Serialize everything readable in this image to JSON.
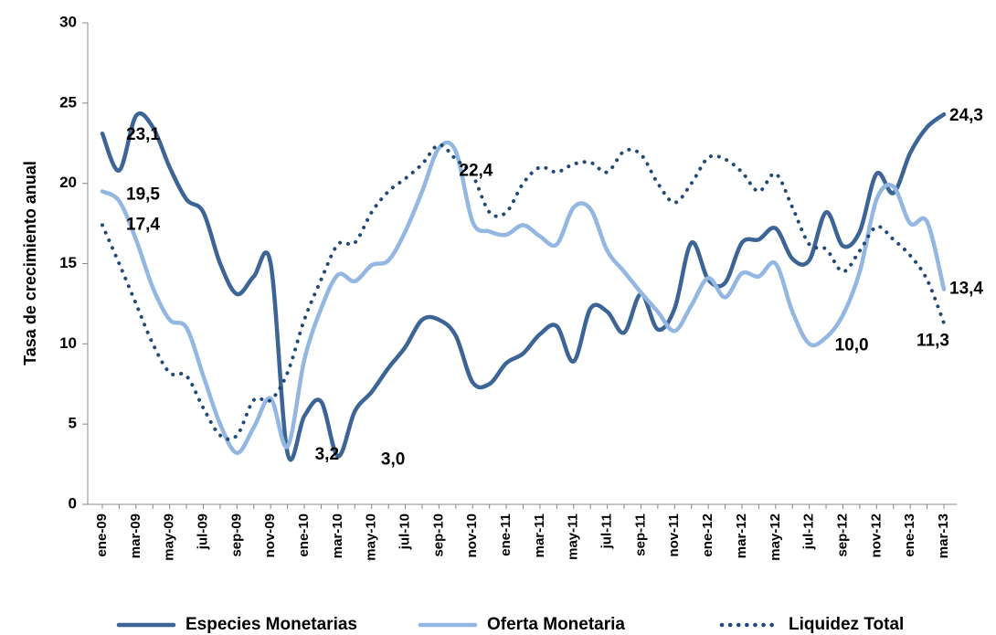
{
  "chart_data": {
    "type": "line",
    "y_label": "Tasa de crecimiento anual",
    "categories": [
      "ene-09",
      null,
      "mar-09",
      null,
      "may-09",
      null,
      "jul-09",
      null,
      "sep-09",
      null,
      "nov-09",
      null,
      "ene-10",
      null,
      "mar-10",
      null,
      "may-10",
      null,
      "jul-10",
      null,
      "sep-10",
      null,
      "nov-10",
      null,
      "ene-11",
      null,
      "mar-11",
      null,
      "may-11",
      null,
      "jul-11",
      null,
      "sep-11",
      null,
      "nov-11",
      null,
      "ene-12",
      null,
      "mar-12",
      null,
      "may-12",
      null,
      "jul-12",
      null,
      "sep-12",
      null,
      "nov-12",
      null,
      "ene-13",
      null,
      "mar-13"
    ],
    "series": [
      {
        "name": "Especies Monetarias",
        "color": "#3c6596",
        "style": "solid",
        "values": [
          23.1,
          20.8,
          24.2,
          23.5,
          21.0,
          19.0,
          18.2,
          15.0,
          13.1,
          14.2,
          15.0,
          3.2,
          5.5,
          6.4,
          3.0,
          5.8,
          7.0,
          8.5,
          9.8,
          11.5,
          11.5,
          10.5,
          7.6,
          7.5,
          8.8,
          9.4,
          10.6,
          11.1,
          8.9,
          12.2,
          12.0,
          10.7,
          13.1,
          10.9,
          12.2,
          16.3,
          14.0,
          13.8,
          16.3,
          16.5,
          17.2,
          15.3,
          15.2,
          18.2,
          16.1,
          17.0,
          20.6,
          19.4,
          21.9,
          23.5,
          24.3
        ],
        "value_labels": [
          "23,1",
          null,
          null,
          null,
          null,
          null,
          null,
          null,
          null,
          null,
          null,
          "3,2",
          null,
          null,
          "3,0",
          null,
          null,
          null,
          null,
          null,
          null,
          null,
          null,
          null,
          null,
          null,
          null,
          null,
          null,
          null,
          null,
          null,
          null,
          null,
          null,
          null,
          null,
          null,
          null,
          null,
          null,
          null,
          null,
          null,
          null,
          null,
          null,
          null,
          null,
          null,
          "24,3"
        ]
      },
      {
        "name": "Oferta Monetaria",
        "color": "#93b7e1",
        "style": "solid",
        "values": [
          19.5,
          18.9,
          16.5,
          13.5,
          11.5,
          11.0,
          8.0,
          5.0,
          3.2,
          4.8,
          6.6,
          3.6,
          9.0,
          12.2,
          14.3,
          13.9,
          14.9,
          15.2,
          17.0,
          19.5,
          22.2,
          22.0,
          17.6,
          17.0,
          16.8,
          17.4,
          16.7,
          16.2,
          18.5,
          18.4,
          15.8,
          14.5,
          13.2,
          12.0,
          10.8,
          12.4,
          14.1,
          12.9,
          14.4,
          14.2,
          15.0,
          12.0,
          10.0,
          10.4,
          11.8,
          14.5,
          19.0,
          19.8,
          17.5,
          17.6,
          13.4
        ],
        "value_labels": [
          "19,5",
          null,
          null,
          null,
          null,
          null,
          null,
          null,
          null,
          null,
          null,
          null,
          null,
          null,
          null,
          null,
          null,
          null,
          null,
          null,
          null,
          null,
          null,
          null,
          null,
          null,
          null,
          null,
          null,
          null,
          null,
          null,
          null,
          null,
          null,
          null,
          null,
          null,
          null,
          null,
          null,
          null,
          "10,0",
          null,
          null,
          null,
          null,
          null,
          null,
          null,
          "13,4"
        ]
      },
      {
        "name": "Liquidez Total",
        "color": "#1f4a78",
        "style": "dotted",
        "values": [
          17.4,
          15.0,
          12.5,
          10.0,
          8.2,
          8.0,
          6.0,
          4.3,
          4.3,
          6.5,
          6.5,
          8.2,
          11.5,
          14.0,
          16.2,
          16.3,
          18.2,
          19.5,
          20.3,
          21.2,
          22.4,
          21.5,
          20.5,
          18.2,
          18.2,
          20.0,
          21.0,
          20.7,
          21.2,
          21.3,
          20.7,
          22.0,
          21.8,
          20.0,
          18.8,
          20.0,
          21.6,
          21.5,
          20.7,
          19.5,
          20.6,
          18.5,
          16.2,
          15.9,
          14.5,
          15.8,
          17.3,
          16.5,
          15.5,
          14.0,
          11.3
        ],
        "value_labels": [
          "17,4",
          null,
          null,
          null,
          null,
          null,
          null,
          null,
          null,
          null,
          null,
          null,
          null,
          null,
          null,
          null,
          null,
          null,
          null,
          null,
          "22,4",
          null,
          null,
          null,
          null,
          null,
          null,
          null,
          null,
          null,
          null,
          null,
          null,
          null,
          null,
          null,
          null,
          null,
          null,
          null,
          null,
          null,
          null,
          null,
          null,
          null,
          null,
          null,
          null,
          null,
          "11,3"
        ]
      }
    ],
    "ylim": [
      0,
      30
    ],
    "yticks": [
      0,
      5,
      10,
      15,
      20,
      25,
      30
    ],
    "legend": "bottom"
  }
}
